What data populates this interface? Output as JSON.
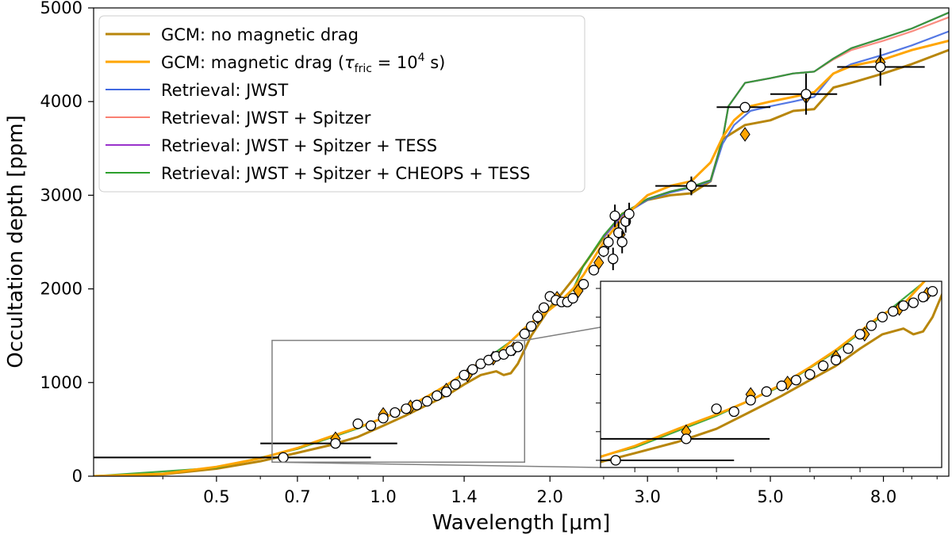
{
  "chart_data": {
    "type": "line",
    "xlabel": "Wavelength [μm]",
    "ylabel": "Occultation depth [ppm]",
    "xscale": "log",
    "xlim": [
      0.3,
      10.5
    ],
    "ylim": [
      0,
      5000
    ],
    "x_ticks": [
      0.5,
      0.7,
      1.0,
      1.4,
      2.0,
      3.0,
      5.0,
      8.0
    ],
    "x_tick_labels": [
      "0.5",
      "0.7",
      "1.0",
      "1.4",
      "2.0",
      "3.0",
      "5.0",
      "8.0"
    ],
    "y_ticks": [
      0,
      1000,
      2000,
      3000,
      4000,
      5000
    ],
    "y_tick_labels": [
      "0",
      "1000",
      "2000",
      "3000",
      "4000",
      "5000"
    ],
    "legend_position": "top-left",
    "legend": [
      {
        "label": "GCM: no magnetic drag",
        "color": "#b8860b"
      },
      {
        "label": "GCM: magnetic drag (",
        "tau": "τ",
        "sub": "fric",
        "eq": " = 10",
        "sup": "4",
        "unit": " s)",
        "color": "#ffa500"
      },
      {
        "label": "Retrieval: JWST",
        "color": "#4169e1"
      },
      {
        "label": "Retrieval: JWST + Spitzer",
        "color": "#fa8072"
      },
      {
        "label": "Retrieval: JWST + Spitzer + TESS",
        "color": "#9932cc"
      },
      {
        "label": "Retrieval: JWST + Spitzer + CHEOPS + TESS",
        "color": "#2ca02c"
      }
    ],
    "series": [
      {
        "name": "GCM: no magnetic drag",
        "color": "#b8860b",
        "x": [
          0.3,
          0.4,
          0.5,
          0.6,
          0.7,
          0.8,
          0.9,
          1.0,
          1.1,
          1.2,
          1.3,
          1.4,
          1.5,
          1.6,
          1.65,
          1.7,
          1.75,
          1.85,
          2.0,
          2.1,
          2.2,
          2.3,
          2.5,
          2.7,
          3.0,
          3.3,
          3.6,
          3.9,
          4.1,
          4.5,
          5.0,
          5.5,
          6.0,
          6.5,
          7.0,
          8.0,
          9.0,
          10.5
        ],
        "y": [
          0,
          20,
          80,
          160,
          250,
          330,
          420,
          540,
          650,
          760,
          860,
          980,
          1080,
          1120,
          1080,
          1100,
          1200,
          1500,
          1800,
          1950,
          2100,
          2250,
          2550,
          2800,
          2950,
          3000,
          3020,
          3150,
          3600,
          3750,
          3800,
          3900,
          3920,
          4150,
          4200,
          4300,
          4400,
          4550
        ]
      },
      {
        "name": "GCM: magnetic drag",
        "color": "#ffa500",
        "x": [
          0.3,
          0.4,
          0.5,
          0.6,
          0.7,
          0.8,
          0.9,
          1.0,
          1.1,
          1.2,
          1.3,
          1.4,
          1.5,
          1.6,
          1.7,
          1.8,
          1.9,
          2.0,
          2.1,
          2.2,
          2.3,
          2.5,
          2.7,
          3.0,
          3.3,
          3.6,
          3.9,
          4.1,
          4.3,
          4.6,
          5.0,
          5.5,
          6.0,
          6.5,
          7.0,
          8.0,
          9.0,
          10.5
        ],
        "y": [
          0,
          25,
          100,
          190,
          300,
          420,
          520,
          620,
          730,
          850,
          970,
          1100,
          1220,
          1290,
          1440,
          1580,
          1690,
          1780,
          1880,
          2000,
          2150,
          2500,
          2750,
          3000,
          3100,
          3150,
          3350,
          3620,
          3800,
          3950,
          4000,
          4050,
          4100,
          4300,
          4380,
          4450,
          4550,
          4650
        ]
      },
      {
        "name": "Retrieval: JWST",
        "color": "#4169e1",
        "x": [
          2.5,
          2.7,
          3.0,
          3.3,
          3.6,
          3.9,
          4.1,
          4.3,
          4.6,
          5.0,
          5.5,
          6.0,
          6.5,
          7.0,
          8.0,
          9.0,
          10.5
        ],
        "y": [
          2550,
          2780,
          2950,
          3030,
          3080,
          3150,
          3550,
          3750,
          3900,
          3950,
          4000,
          4050,
          4300,
          4400,
          4500,
          4600,
          4750
        ]
      },
      {
        "name": "Retrieval: JWST + Spitzer",
        "color": "#fa8072",
        "x": [
          2.5,
          2.7,
          3.0,
          3.3,
          3.6,
          3.9,
          4.1,
          4.2,
          4.5,
          5.0,
          5.5,
          6.0,
          6.5,
          7.0,
          8.0,
          9.0,
          10.5
        ],
        "y": [
          2560,
          2790,
          2960,
          3040,
          3090,
          3160,
          3600,
          3950,
          4200,
          4250,
          4300,
          4320,
          4450,
          4550,
          4650,
          4750,
          4900
        ]
      },
      {
        "name": "Retrieval: JWST + Spitzer + TESS",
        "color": "#9932cc",
        "x": [
          2.5,
          2.7,
          3.0,
          3.3,
          3.6,
          3.9,
          4.1,
          4.2,
          4.5,
          5.0,
          5.5,
          6.0,
          6.5,
          7.0,
          8.0,
          9.0,
          10.5
        ],
        "y": [
          2560,
          2790,
          2960,
          3040,
          3090,
          3160,
          3600,
          3950,
          4200,
          4250,
          4300,
          4320,
          4460,
          4570,
          4680,
          4780,
          4950
        ]
      },
      {
        "name": "Retrieval: JWST + Spitzer + CHEOPS + TESS",
        "color": "#2ca02c",
        "x": [
          0.3,
          0.5,
          0.7,
          0.9,
          1.1,
          1.3,
          1.5,
          1.7,
          1.9,
          2.0,
          2.1,
          2.2,
          2.3,
          2.5,
          2.7,
          3.0,
          3.3,
          3.6,
          3.9,
          4.1,
          4.2,
          4.5,
          5.0,
          5.5,
          6.0,
          6.5,
          7.0,
          8.0,
          9.0,
          10.5
        ],
        "y": [
          0,
          90,
          290,
          510,
          720,
          960,
          1210,
          1440,
          1690,
          1790,
          1880,
          1990,
          2250,
          2570,
          2800,
          2960,
          3040,
          3090,
          3160,
          3600,
          3950,
          4200,
          4250,
          4300,
          4320,
          4460,
          4570,
          4680,
          4780,
          4950
        ]
      }
    ],
    "observations": [
      {
        "x": 0.66,
        "y": 200,
        "xerr": [
          0.3,
          0.95
        ],
        "yerr": 0
      },
      {
        "x": 0.82,
        "y": 350,
        "xerr": [
          0.6,
          1.06
        ],
        "yerr": 0
      },
      {
        "x": 0.9,
        "y": 560,
        "yerr": 30
      },
      {
        "x": 0.95,
        "y": 540,
        "yerr": 30
      },
      {
        "x": 1.0,
        "y": 620,
        "yerr": 30
      },
      {
        "x": 1.05,
        "y": 680,
        "yerr": 30
      },
      {
        "x": 1.1,
        "y": 720,
        "yerr": 30
      },
      {
        "x": 1.15,
        "y": 760,
        "yerr": 30
      },
      {
        "x": 1.2,
        "y": 800,
        "yerr": 30
      },
      {
        "x": 1.25,
        "y": 860,
        "yerr": 30
      },
      {
        "x": 1.3,
        "y": 900,
        "yerr": 30
      },
      {
        "x": 1.35,
        "y": 980,
        "yerr": 30
      },
      {
        "x": 1.4,
        "y": 1080,
        "yerr": 30
      },
      {
        "x": 1.45,
        "y": 1140,
        "yerr": 30
      },
      {
        "x": 1.5,
        "y": 1200,
        "yerr": 30
      },
      {
        "x": 1.55,
        "y": 1240,
        "yerr": 30
      },
      {
        "x": 1.6,
        "y": 1280,
        "yerr": 30
      },
      {
        "x": 1.65,
        "y": 1300,
        "yerr": 30
      },
      {
        "x": 1.7,
        "y": 1340,
        "yerr": 30
      },
      {
        "x": 1.75,
        "y": 1380,
        "yerr": 30
      },
      {
        "x": 1.8,
        "y": 1520,
        "yerr": 30
      },
      {
        "x": 1.85,
        "y": 1600,
        "yerr": 30
      },
      {
        "x": 1.9,
        "y": 1700,
        "yerr": 30
      },
      {
        "x": 1.95,
        "y": 1800,
        "yerr": 30
      },
      {
        "x": 2.0,
        "y": 1920,
        "yerr": 40
      },
      {
        "x": 2.05,
        "y": 1880,
        "yerr": 40
      },
      {
        "x": 2.1,
        "y": 1860,
        "yerr": 40
      },
      {
        "x": 2.15,
        "y": 1860,
        "yerr": 40
      },
      {
        "x": 2.2,
        "y": 1900,
        "yerr": 40
      },
      {
        "x": 2.3,
        "y": 2050,
        "yerr": 50
      },
      {
        "x": 2.4,
        "y": 2200,
        "yerr": 50
      },
      {
        "x": 2.5,
        "y": 2400,
        "yerr": 60
      },
      {
        "x": 2.55,
        "y": 2500,
        "yerr": 80
      },
      {
        "x": 2.6,
        "y": 2320,
        "yerr": 120
      },
      {
        "x": 2.62,
        "y": 2780,
        "yerr": 120
      },
      {
        "x": 2.66,
        "y": 2600,
        "yerr": 120
      },
      {
        "x": 2.7,
        "y": 2500,
        "yerr": 120
      },
      {
        "x": 2.74,
        "y": 2720,
        "yerr": 120
      },
      {
        "x": 2.78,
        "y": 2800,
        "yerr": 120
      },
      {
        "x": 3.6,
        "y": 3100,
        "xerr": [
          3.1,
          4.0
        ],
        "yerr": 100
      },
      {
        "x": 4.5,
        "y": 3940,
        "xerr": [
          4.0,
          5.0
        ],
        "yerr": 0
      },
      {
        "x": 5.8,
        "y": 4080,
        "xerr": [
          5.0,
          6.6
        ],
        "yerr": 220
      },
      {
        "x": 7.9,
        "y": 4370,
        "xerr": [
          6.6,
          9.5
        ],
        "yerr": 200
      }
    ],
    "gcm_bins": [
      {
        "x": 0.82,
        "y": 400
      },
      {
        "x": 1.0,
        "y": 660
      },
      {
        "x": 1.12,
        "y": 740
      },
      {
        "x": 1.3,
        "y": 920
      },
      {
        "x": 1.42,
        "y": 1080
      },
      {
        "x": 1.58,
        "y": 1260
      },
      {
        "x": 1.72,
        "y": 1360
      },
      {
        "x": 1.9,
        "y": 1700
      },
      {
        "x": 2.06,
        "y": 1900
      },
      {
        "x": 2.25,
        "y": 1980
      },
      {
        "x": 2.45,
        "y": 2280
      },
      {
        "x": 2.68,
        "y": 2580
      },
      {
        "x": 3.6,
        "y": 3100
      },
      {
        "x": 4.5,
        "y": 3650
      },
      {
        "x": 5.8,
        "y": 4050
      },
      {
        "x": 7.9,
        "y": 4420
      }
    ],
    "inset": {
      "xlim": [
        0.63,
        1.8
      ],
      "ylim": [
        150,
        1450
      ]
    }
  }
}
